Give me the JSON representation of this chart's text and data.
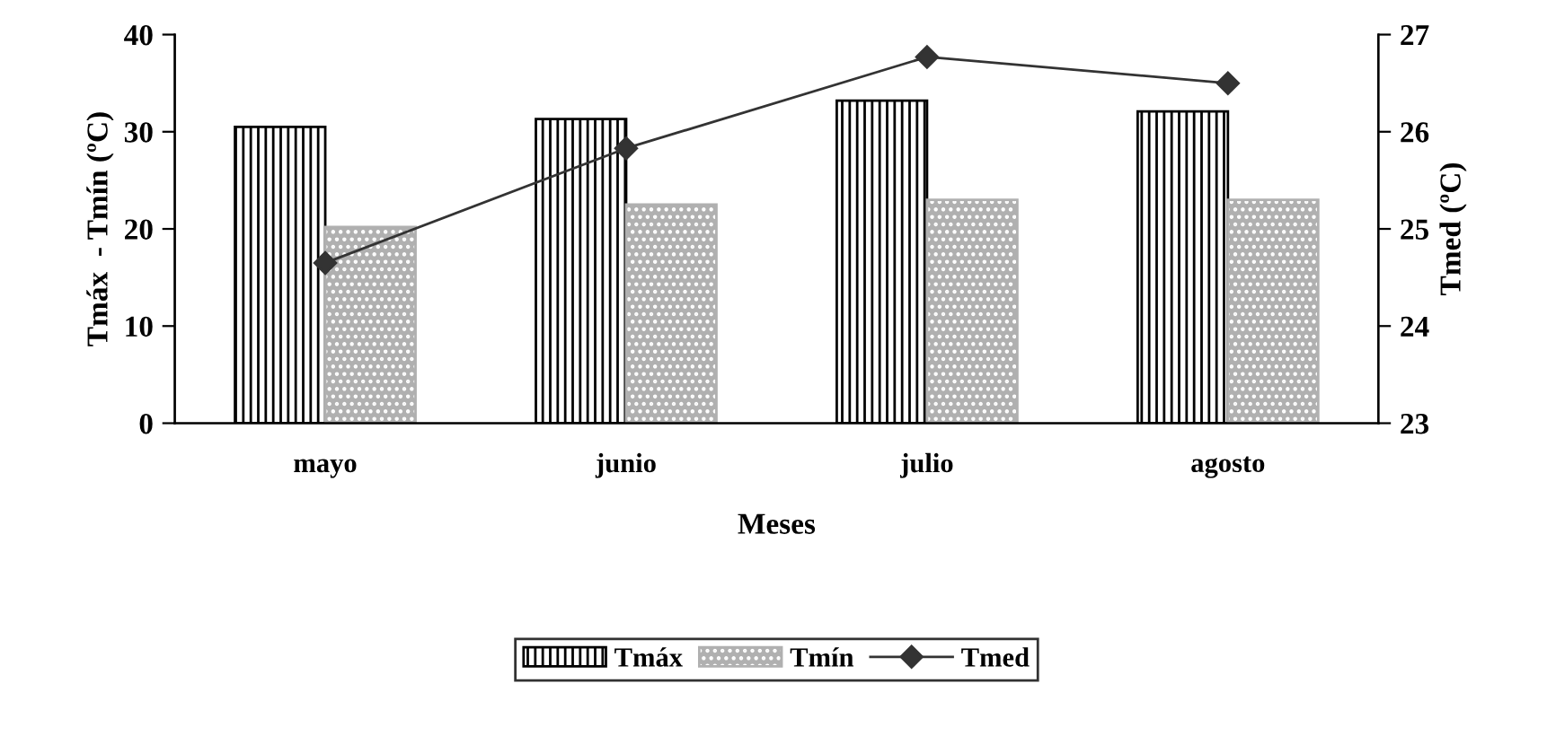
{
  "chart_data": {
    "type": "bar",
    "xlabel": "Meses",
    "ylabel": "Tmáx  - Tmín (ºC)",
    "y2label": "Tmed (ºC)",
    "categories": [
      "mayo",
      "junio",
      "julio",
      "agosto"
    ],
    "series": [
      {
        "name": "Tmáx",
        "color": "#000000",
        "values": [
          30.5,
          31.3,
          33.2,
          32.1
        ]
      },
      {
        "name": "Tmín",
        "color": "#b0b0b0",
        "values": [
          20.2,
          22.5,
          23.0,
          23.0
        ]
      },
      {
        "name": "Tmed",
        "type": "line",
        "axis": "y2",
        "color": "#333333",
        "marker": "diamond",
        "values": [
          24.65,
          25.83,
          26.77,
          26.5
        ]
      }
    ],
    "ylim": [
      0,
      40
    ],
    "yticks": [
      0,
      10,
      20,
      30,
      40
    ],
    "y2lim": [
      23,
      27
    ],
    "y2ticks": [
      23,
      24,
      25,
      26,
      27
    ],
    "grid": false,
    "legend": "bottom"
  }
}
